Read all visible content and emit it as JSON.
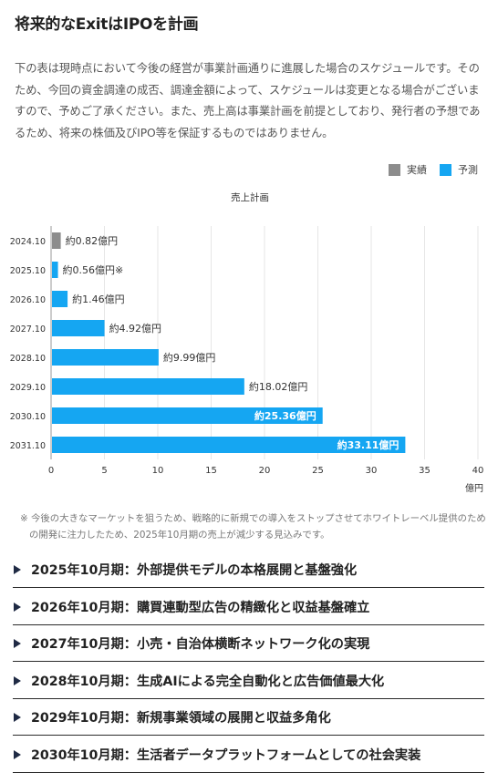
{
  "title": "将来的なExitはIPOを計画",
  "intro": "下の表は現時点において今後の経営が事業計画通りに進展した場合のスケジュールです。そのため、今回の資金調達の成否、調達金額によって、スケジュールは変更となる場合がございますので、予めご了承ください。また、売上高は事業計画を前提としており、発行者の予想であるため、将来の株価及びIPO等を保証するものではありません。",
  "legend": {
    "actual_label": "実績",
    "forecast_label": "予測",
    "actual_color": "#8c8c8c",
    "forecast_color": "#15a6f2"
  },
  "chart_data": {
    "type": "bar",
    "orientation": "horizontal",
    "title": "売上計画",
    "categories": [
      "2024.10",
      "2025.10",
      "2026.10",
      "2027.10",
      "2028.10",
      "2029.10",
      "2030.10",
      "2031.10"
    ],
    "values": [
      0.82,
      0.56,
      1.46,
      4.92,
      9.99,
      18.02,
      25.36,
      33.11
    ],
    "data_labels": [
      "約0.82億円",
      "約0.56億円※",
      "約1.46億円",
      "約4.92億円",
      "約9.99億円",
      "約18.02億円",
      "約25.36億円",
      "約33.11億円"
    ],
    "status": [
      "実績",
      "予測",
      "予測",
      "予測",
      "予測",
      "予測",
      "予測",
      "予測"
    ],
    "xlim": [
      0,
      40
    ],
    "xticks": [
      0,
      5,
      10,
      15,
      20,
      25,
      30,
      35,
      40
    ],
    "xlabel": "億円",
    "grid": true,
    "legend_position": "top-right"
  },
  "note": "※ 今後の大きなマーケットを狙うため、戦略的に新規での導入をストップさせてホワイトレーベル提供のための開発に注力したため、2025年10月期の売上が減少する見込みです。",
  "milestones": [
    "2025年10月期：外部提供モデルの本格展開と基盤強化",
    "2026年10月期：購買連動型広告の精緻化と収益基盤確立",
    "2027年10月期：小売・自治体横断ネットワーク化の実現",
    "2028年10月期：生成AIによる完全自動化と広告価値最大化",
    "2029年10月期：新規事業領域の展開と収益多角化",
    "2030年10月期：生活者データプラットフォームとしての社会実装"
  ]
}
